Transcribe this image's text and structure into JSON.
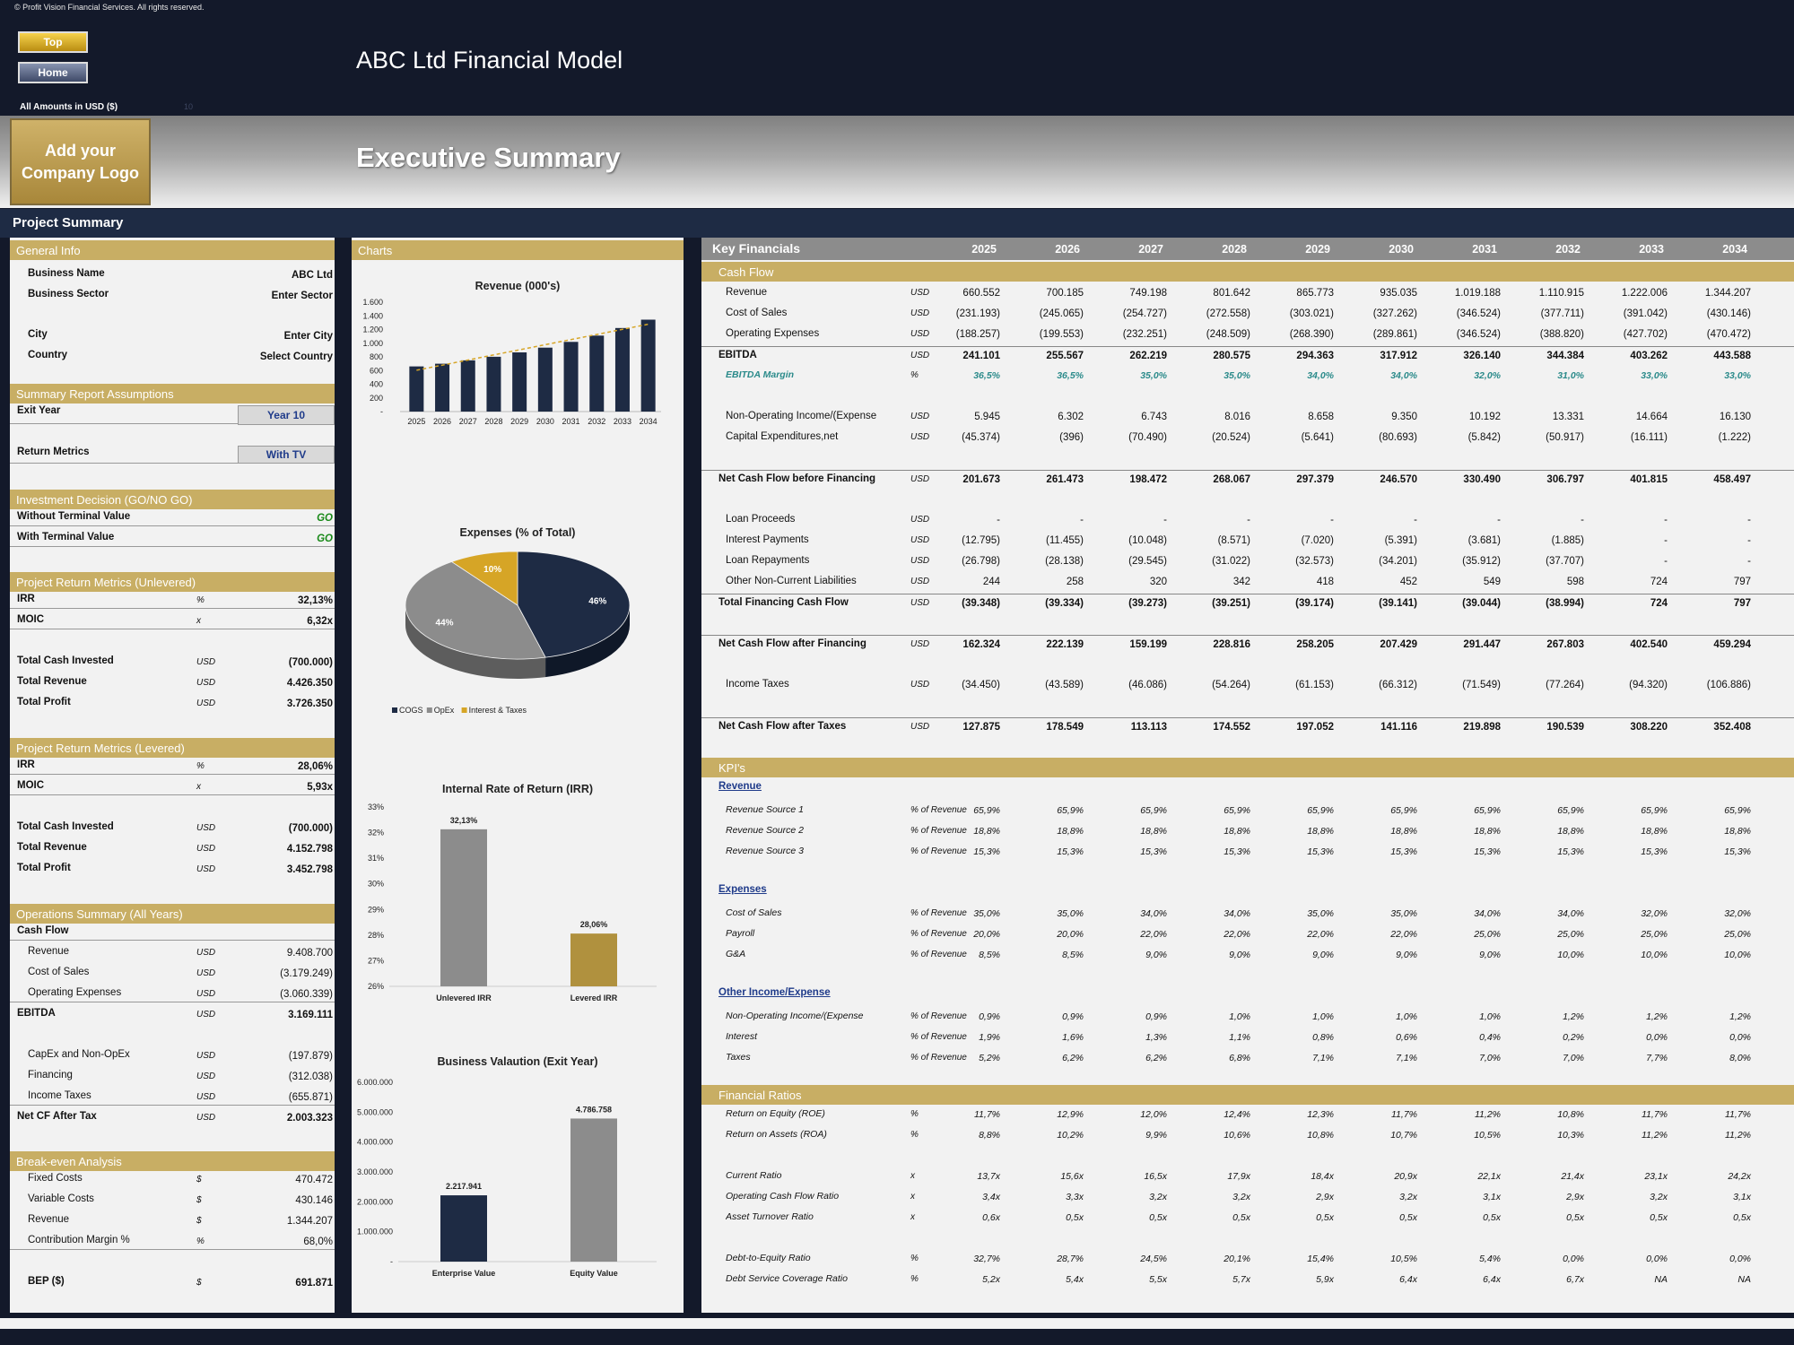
{
  "copyright": "© Profit Vision Financial Services. All rights reserved.",
  "nav": {
    "top": "Top",
    "home": "Home"
  },
  "app_title": "ABC Ltd Financial Model",
  "amounts_label": "All Amounts in  USD ($)",
  "amounts_ghost": "10",
  "logo_text": "Add your Company Logo",
  "page_title": "Executive Summary",
  "project_summary": "Project Summary",
  "left": {
    "general_info": {
      "title": "General Info",
      "rows": [
        {
          "label": "Business Name",
          "value": "ABC Ltd"
        },
        {
          "label": "Business Sector",
          "value": "Enter Sector"
        },
        {
          "label": "City",
          "value": "Enter City"
        },
        {
          "label": "Country",
          "value": "Select Country"
        }
      ]
    },
    "assumptions": {
      "title": "Summary  Report Assumptions",
      "exit_year_label": "Exit Year",
      "exit_year": "Year 10",
      "return_metrics_label": "Return Metrics",
      "return_metrics": "With TV"
    },
    "investment": {
      "title": "Investment Decision (GO/NO GO)",
      "rows": [
        {
          "label": "Without Terminal Value",
          "value": "GO"
        },
        {
          "label": "With Terminal Value",
          "value": "GO"
        }
      ]
    },
    "unlevered": {
      "title": "Project Return Metrics (Unlevered)",
      "rows": [
        {
          "label": "IRR",
          "unit": "%",
          "value": "32,13%"
        },
        {
          "label": "MOIC",
          "unit": "x",
          "value": "6,32x"
        },
        {
          "label": "Total Cash Invested",
          "unit": "USD",
          "value": "(700.000)"
        },
        {
          "label": "Total Revenue",
          "unit": "USD",
          "value": "4.426.350"
        },
        {
          "label": "Total Profit",
          "unit": "USD",
          "value": "3.726.350"
        }
      ]
    },
    "levered": {
      "title": "Project Return Metrics (Levered)",
      "rows": [
        {
          "label": "IRR",
          "unit": "%",
          "value": "28,06%"
        },
        {
          "label": "MOIC",
          "unit": "x",
          "value": "5,93x"
        },
        {
          "label": "Total Cash Invested",
          "unit": "USD",
          "value": "(700.000)"
        },
        {
          "label": "Total Revenue",
          "unit": "USD",
          "value": "4.152.798"
        },
        {
          "label": "Total Profit",
          "unit": "USD",
          "value": "3.452.798"
        }
      ]
    },
    "operations": {
      "title": "Operations Summary (All Years)",
      "cash_flow_label": "Cash Flow",
      "rows": [
        {
          "label": "Revenue",
          "unit": "USD",
          "value": "9.408.700"
        },
        {
          "label": "Cost of Sales",
          "unit": "USD",
          "value": "(3.179.249)"
        },
        {
          "label": "Operating Expenses",
          "unit": "USD",
          "value": "(3.060.339)"
        },
        {
          "label": "EBITDA",
          "unit": "USD",
          "value": "3.169.111"
        },
        {
          "label": "CapEx and Non-OpEx",
          "unit": "USD",
          "value": "(197.879)"
        },
        {
          "label": "Financing",
          "unit": "USD",
          "value": "(312.038)"
        },
        {
          "label": "Income Taxes",
          "unit": "USD",
          "value": "(655.871)"
        },
        {
          "label": "Net CF After Tax",
          "unit": "USD",
          "value": "2.003.323"
        }
      ]
    },
    "breakeven": {
      "title": "Break-even Analysis",
      "rows": [
        {
          "label": "Fixed Costs",
          "unit": "$",
          "value": "470.472"
        },
        {
          "label": "Variable Costs",
          "unit": "$",
          "value": "430.146"
        },
        {
          "label": "Revenue",
          "unit": "$",
          "value": "1.344.207"
        },
        {
          "label": "Contribution Margin %",
          "unit": "%",
          "value": "68,0%"
        },
        {
          "label": "BEP ($)",
          "unit": "$",
          "value": "691.871"
        }
      ]
    }
  },
  "charts_title": "Charts",
  "chart_data": [
    {
      "type": "bar",
      "title": "Revenue (000's)",
      "categories": [
        "2025",
        "2026",
        "2027",
        "2028",
        "2029",
        "2030",
        "2031",
        "2032",
        "2033",
        "2034"
      ],
      "values": [
        660.552,
        700.185,
        749.198,
        801.642,
        865.773,
        935.035,
        1019.188,
        1110.915,
        1222.006,
        1344.207
      ],
      "yticks": [
        "-",
        "200",
        "400",
        "600",
        "800",
        "1.000",
        "1.200",
        "1.400",
        "1.600"
      ],
      "ylim": [
        0,
        1600
      ],
      "trendline": true,
      "color": "#1e2b44"
    },
    {
      "type": "pie",
      "title": "Expenses (% of Total)",
      "slices": [
        {
          "name": "COGS",
          "value": 46,
          "label": "46%",
          "color": "#1e2b44"
        },
        {
          "name": "OpEx",
          "value": 44,
          "label": "44%",
          "color": "#8c8c8c"
        },
        {
          "name": "Interest & Taxes",
          "value": 10,
          "label": "10%",
          "color": "#d6a526"
        }
      ]
    },
    {
      "type": "bar",
      "title": "Internal Rate of Return (IRR)",
      "categories": [
        "Unlevered IRR",
        "Levered IRR"
      ],
      "values": [
        32.13,
        28.06
      ],
      "labels": [
        "32,13%",
        "28,06%"
      ],
      "colors": [
        "#8c8c8c",
        "#b0913e"
      ],
      "yticks": [
        "26%",
        "27%",
        "28%",
        "29%",
        "30%",
        "31%",
        "32%",
        "33%"
      ],
      "ylim": [
        26,
        33
      ]
    },
    {
      "type": "bar",
      "title": "Business Valaution (Exit Year)",
      "categories": [
        "Enterprise Value",
        "Equity Value"
      ],
      "values": [
        2217941,
        4786758
      ],
      "labels": [
        "2.217.941",
        "4.786.758"
      ],
      "colors": [
        "#1e2b44",
        "#8c8c8c"
      ],
      "yticks": [
        "-",
        "1.000.000",
        "2.000.000",
        "3.000.000",
        "4.000.000",
        "5.000.000",
        "6.000.000"
      ],
      "ylim": [
        0,
        6000000
      ]
    }
  ],
  "kf": {
    "title": "Key Financials",
    "years": [
      "2025",
      "2026",
      "2027",
      "2028",
      "2029",
      "2030",
      "2031",
      "2032",
      "2033",
      "2034"
    ],
    "cash_flow_title": "Cash Flow",
    "cf_rows": [
      {
        "label": "Revenue",
        "unit": "USD",
        "style": "",
        "values": [
          "660.552",
          "700.185",
          "749.198",
          "801.642",
          "865.773",
          "935.035",
          "1.019.188",
          "1.110.915",
          "1.222.006",
          "1.344.207"
        ]
      },
      {
        "label": "Cost of Sales",
        "unit": "USD",
        "style": "",
        "values": [
          "(231.193)",
          "(245.065)",
          "(254.727)",
          "(272.558)",
          "(303.021)",
          "(327.262)",
          "(346.524)",
          "(377.711)",
          "(391.042)",
          "(430.146)"
        ]
      },
      {
        "label": "Operating Expenses",
        "unit": "USD",
        "style": "",
        "values": [
          "(188.257)",
          "(199.553)",
          "(232.251)",
          "(248.509)",
          "(268.390)",
          "(289.861)",
          "(346.524)",
          "(388.820)",
          "(427.702)",
          "(470.472)"
        ]
      },
      {
        "label": "EBITDA",
        "unit": "USD",
        "style": "top bold line",
        "values": [
          "241.101",
          "255.567",
          "262.219",
          "280.575",
          "294.363",
          "317.912",
          "326.140",
          "344.384",
          "403.262",
          "443.588"
        ]
      },
      {
        "label": "EBITDA Margin",
        "unit": "%",
        "style": "ital teal",
        "values": [
          "36,5%",
          "36,5%",
          "35,0%",
          "35,0%",
          "34,0%",
          "34,0%",
          "32,0%",
          "31,0%",
          "33,0%",
          "33,0%"
        ]
      },
      {
        "label": "Non-Operating Income/(Expense",
        "unit": "USD",
        "style": "",
        "values": [
          "5.945",
          "6.302",
          "6.743",
          "8.016",
          "8.658",
          "9.350",
          "10.192",
          "13.331",
          "14.664",
          "16.130"
        ]
      },
      {
        "label": "Capital Expenditures,net",
        "unit": "USD",
        "style": "",
        "values": [
          "(45.374)",
          "(396)",
          "(70.490)",
          "(20.524)",
          "(5.641)",
          "(80.693)",
          "(5.842)",
          "(50.917)",
          "(16.111)",
          "(1.222)"
        ]
      },
      {
        "label": "Net Cash Flow before Financing",
        "unit": "USD",
        "style": "top bold line",
        "values": [
          "201.673",
          "261.473",
          "198.472",
          "268.067",
          "297.379",
          "246.570",
          "330.490",
          "306.797",
          "401.815",
          "458.497"
        ]
      },
      {
        "label": "Loan Proceeds",
        "unit": "USD",
        "style": "",
        "values": [
          "-",
          "-",
          "-",
          "-",
          "-",
          "-",
          "-",
          "-",
          "-",
          "-"
        ]
      },
      {
        "label": "Interest Payments",
        "unit": "USD",
        "style": "",
        "values": [
          "(12.795)",
          "(11.455)",
          "(10.048)",
          "(8.571)",
          "(7.020)",
          "(5.391)",
          "(3.681)",
          "(1.885)",
          "-",
          "-"
        ]
      },
      {
        "label": "Loan Repayments",
        "unit": "USD",
        "style": "",
        "values": [
          "(26.798)",
          "(28.138)",
          "(29.545)",
          "(31.022)",
          "(32.573)",
          "(34.201)",
          "(35.912)",
          "(37.707)",
          "-",
          "-"
        ]
      },
      {
        "label": "Other Non-Current Liabilities",
        "unit": "USD",
        "style": "",
        "values": [
          "244",
          "258",
          "320",
          "342",
          "418",
          "452",
          "549",
          "598",
          "724",
          "797"
        ]
      },
      {
        "label": "Total Financing Cash Flow",
        "unit": "USD",
        "style": "top bold line",
        "values": [
          "(39.348)",
          "(39.334)",
          "(39.273)",
          "(39.251)",
          "(39.174)",
          "(39.141)",
          "(39.044)",
          "(38.994)",
          "724",
          "797"
        ]
      },
      {
        "label": "Net Cash Flow after Financing",
        "unit": "USD",
        "style": "top bold line",
        "values": [
          "162.324",
          "222.139",
          "159.199",
          "228.816",
          "258.205",
          "207.429",
          "291.447",
          "267.803",
          "402.540",
          "459.294"
        ]
      },
      {
        "label": "Income Taxes",
        "unit": "USD",
        "style": "",
        "values": [
          "(34.450)",
          "(43.589)",
          "(46.086)",
          "(54.264)",
          "(61.153)",
          "(66.312)",
          "(71.549)",
          "(77.264)",
          "(94.320)",
          "(106.886)"
        ]
      },
      {
        "label": "Net Cash Flow after Taxes",
        "unit": "USD",
        "style": "top bold line",
        "values": [
          "127.875",
          "178.549",
          "113.113",
          "174.552",
          "197.052",
          "141.116",
          "219.898",
          "190.539",
          "308.220",
          "352.408"
        ]
      }
    ],
    "kpi_title": "KPI's",
    "kpi_revenue_title": "Revenue",
    "kpi_revenue": [
      {
        "label": "Revenue Source 1",
        "unit": "% of Revenue",
        "values": [
          "65,9%",
          "65,9%",
          "65,9%",
          "65,9%",
          "65,9%",
          "65,9%",
          "65,9%",
          "65,9%",
          "65,9%",
          "65,9%"
        ]
      },
      {
        "label": "Revenue Source 2",
        "unit": "% of Revenue",
        "values": [
          "18,8%",
          "18,8%",
          "18,8%",
          "18,8%",
          "18,8%",
          "18,8%",
          "18,8%",
          "18,8%",
          "18,8%",
          "18,8%"
        ]
      },
      {
        "label": "Revenue Source 3",
        "unit": "% of Revenue",
        "values": [
          "15,3%",
          "15,3%",
          "15,3%",
          "15,3%",
          "15,3%",
          "15,3%",
          "15,3%",
          "15,3%",
          "15,3%",
          "15,3%"
        ]
      }
    ],
    "kpi_expenses_title": "Expenses",
    "kpi_expenses": [
      {
        "label": "Cost of Sales",
        "unit": "% of Revenue",
        "values": [
          "35,0%",
          "35,0%",
          "34,0%",
          "34,0%",
          "35,0%",
          "35,0%",
          "34,0%",
          "34,0%",
          "32,0%",
          "32,0%"
        ]
      },
      {
        "label": "Payroll",
        "unit": "% of Revenue",
        "values": [
          "20,0%",
          "20,0%",
          "22,0%",
          "22,0%",
          "22,0%",
          "22,0%",
          "25,0%",
          "25,0%",
          "25,0%",
          "25,0%"
        ]
      },
      {
        "label": "G&A",
        "unit": "% of Revenue",
        "values": [
          "8,5%",
          "8,5%",
          "9,0%",
          "9,0%",
          "9,0%",
          "9,0%",
          "9,0%",
          "10,0%",
          "10,0%",
          "10,0%"
        ]
      }
    ],
    "kpi_other_title": "Other Income/Expense",
    "kpi_other": [
      {
        "label": "Non-Operating Income/(Expense",
        "unit": "% of Revenue",
        "values": [
          "0,9%",
          "0,9%",
          "0,9%",
          "1,0%",
          "1,0%",
          "1,0%",
          "1,0%",
          "1,2%",
          "1,2%",
          "1,2%"
        ]
      },
      {
        "label": "Interest",
        "unit": "% of Revenue",
        "values": [
          "1,9%",
          "1,6%",
          "1,3%",
          "1,1%",
          "0,8%",
          "0,6%",
          "0,4%",
          "0,2%",
          "0,0%",
          "0,0%"
        ]
      },
      {
        "label": "Taxes",
        "unit": "% of Revenue",
        "values": [
          "5,2%",
          "6,2%",
          "6,2%",
          "6,8%",
          "7,1%",
          "7,1%",
          "7,0%",
          "7,0%",
          "7,7%",
          "8,0%"
        ]
      }
    ],
    "ratios_title": "Financial Ratios",
    "ratios": [
      {
        "label": "Return on Equity (ROE)",
        "unit": "%",
        "values": [
          "11,7%",
          "12,9%",
          "12,0%",
          "12,4%",
          "12,3%",
          "11,7%",
          "11,2%",
          "10,8%",
          "11,7%",
          "11,7%"
        ]
      },
      {
        "label": "Return on Assets (ROA)",
        "unit": "%",
        "values": [
          "8,8%",
          "10,2%",
          "9,9%",
          "10,6%",
          "10,8%",
          "10,7%",
          "10,5%",
          "10,3%",
          "11,2%",
          "11,2%"
        ]
      },
      {
        "label": "Current Ratio",
        "unit": "x",
        "values": [
          "13,7x",
          "15,6x",
          "16,5x",
          "17,9x",
          "18,4x",
          "20,9x",
          "22,1x",
          "21,4x",
          "23,1x",
          "24,2x"
        ]
      },
      {
        "label": "Operating Cash Flow Ratio",
        "unit": "x",
        "values": [
          "3,4x",
          "3,3x",
          "3,2x",
          "3,2x",
          "2,9x",
          "3,2x",
          "3,1x",
          "2,9x",
          "3,2x",
          "3,1x"
        ]
      },
      {
        "label": "Asset Turnover Ratio",
        "unit": "x",
        "values": [
          "0,6x",
          "0,5x",
          "0,5x",
          "0,5x",
          "0,5x",
          "0,5x",
          "0,5x",
          "0,5x",
          "0,5x",
          "0,5x"
        ]
      },
      {
        "label": "Debt-to-Equity Ratio",
        "unit": "%",
        "values": [
          "32,7%",
          "28,7%",
          "24,5%",
          "20,1%",
          "15,4%",
          "10,5%",
          "5,4%",
          "0,0%",
          "0,0%",
          "0,0%"
        ]
      },
      {
        "label": "Debt Service Coverage Ratio",
        "unit": "%",
        "values": [
          "5,2x",
          "5,4x",
          "5,5x",
          "5,7x",
          "5,9x",
          "6,4x",
          "6,4x",
          "6,7x",
          "NA",
          "NA"
        ]
      }
    ]
  }
}
